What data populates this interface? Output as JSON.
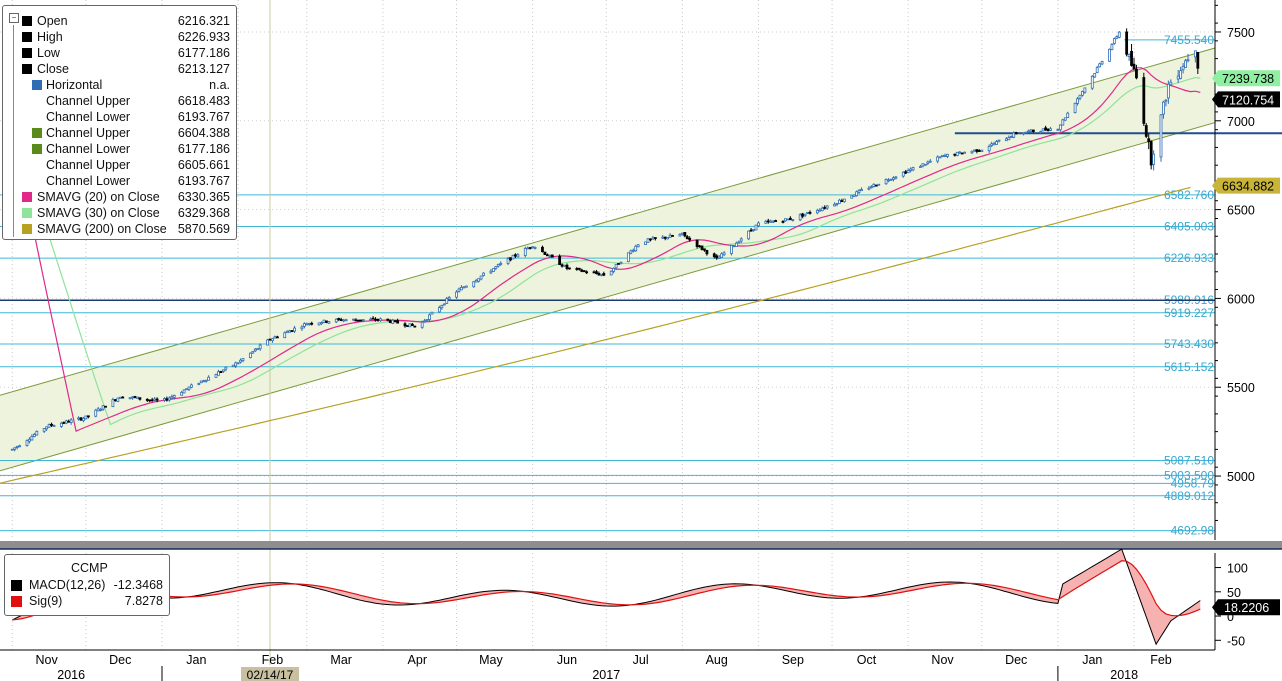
{
  "legend": {
    "collapse_icon": "minus-square-icon",
    "items": [
      {
        "label": "Open",
        "value": "6216.321",
        "color": "#000000",
        "indent": 1
      },
      {
        "label": "High",
        "value": "6226.933",
        "color": "#000000",
        "indent": 1
      },
      {
        "label": "Low",
        "value": "6177.186",
        "color": "#000000",
        "indent": 1
      },
      {
        "label": "Close",
        "value": "6213.127",
        "color": "#000000",
        "indent": 1
      },
      {
        "label": "Horizontal",
        "value": "n.a.",
        "color": "#2f6db5",
        "indent": 2
      },
      {
        "label": "Channel Upper",
        "value": "6618.483",
        "color": "#ffffff",
        "indent": 2
      },
      {
        "label": "Channel Lower",
        "value": "6193.767",
        "color": "#ffffff",
        "indent": 2
      },
      {
        "label": "Channel Upper",
        "value": "6604.388",
        "color": "#5a8a1a",
        "indent": 2
      },
      {
        "label": "Channel Lower",
        "value": "6177.186",
        "color": "#5a8a1a",
        "indent": 2
      },
      {
        "label": "Channel Upper",
        "value": "6605.661",
        "color": "#ffffff",
        "indent": 2
      },
      {
        "label": "Channel Lower",
        "value": "6193.767",
        "color": "#ffffff",
        "indent": 2
      },
      {
        "label": "SMAVG (20) on Close",
        "value": "6330.365",
        "color": "#e0288a",
        "indent": 1
      },
      {
        "label": "SMAVG (30) on Close",
        "value": "6329.368",
        "color": "#8fe39a",
        "indent": 1
      },
      {
        "label": "SMAVG (200) on Close",
        "value": "5870.569",
        "color": "#b8a020",
        "indent": 1
      }
    ]
  },
  "macd_legend": {
    "title": "CCMP",
    "items": [
      {
        "label": "MACD(12,26)",
        "value": "-12.3468",
        "color": "#000000"
      },
      {
        "label": "Sig(9)",
        "value": "7.8278",
        "color": "#e01010"
      }
    ]
  },
  "axis_tags": [
    {
      "text": "7239.738",
      "value": 7239.738,
      "bg": "#8ef0a0",
      "fg": "#000000"
    },
    {
      "text": "7120.754",
      "value": 7120.754,
      "bg": "#000000",
      "fg": "#ffffff"
    },
    {
      "text": "6634.882",
      "value": 6634.882,
      "bg": "#c9b43a",
      "fg": "#000000"
    },
    {
      "text": "18.2206",
      "value": 18.2206,
      "bg": "#000000",
      "fg": "#ffffff"
    }
  ],
  "colors": {
    "channel_fill": "#eef3dd",
    "channel_line": "#7a9a3a",
    "level_line": "#3fb8d8",
    "sma20": "#e0288a",
    "sma30": "#8fe39a",
    "sma200": "#b8a020",
    "macd_line": "#000000",
    "signal_line": "#e01010",
    "macd_fill": "#f4a3a3",
    "candle_up": "#2f6db5",
    "candle_down": "#000000"
  },
  "chart_data": [
    {
      "type": "candlestick",
      "ticker": "CCMP",
      "y_ticks": [
        5000,
        5500,
        6000,
        6500,
        7000,
        7500
      ],
      "ylim": [
        4640,
        7680
      ],
      "x_months": [
        "Nov",
        "Dec",
        "Jan",
        "Feb",
        "Mar",
        "Apr",
        "May",
        "Jun",
        "Jul",
        "Aug",
        "Sep",
        "Oct",
        "Nov",
        "Dec",
        "Jan",
        "Feb"
      ],
      "x_years": [
        "2016",
        "2017",
        "2018"
      ],
      "cursor_date": "02/14/17",
      "horizontal_levels": [
        {
          "value": 7455.54,
          "label": "7455.540"
        },
        {
          "value": 6582.76,
          "label": "6582.760"
        },
        {
          "value": 6405.003,
          "label": "6405.003"
        },
        {
          "value": 6226.933,
          "label": "6226.933"
        },
        {
          "value": 5989.916,
          "label": "5989.916"
        },
        {
          "value": 5919.227,
          "label": "5919.227"
        },
        {
          "value": 5743.43,
          "label": "5743.430"
        },
        {
          "value": 5615.152,
          "label": "5615.152"
        },
        {
          "value": 5087.51,
          "label": "5087.510"
        },
        {
          "value": 5003.5,
          "label": "5003.500"
        },
        {
          "value": 4958.79,
          "label": "4958.79"
        },
        {
          "value": 4889.012,
          "label": "4889.012"
        },
        {
          "value": 4692.98,
          "label": "4692.98"
        }
      ],
      "channel": {
        "upper_start": 5455,
        "upper_end": 7410,
        "lower_start": 5030,
        "lower_end": 6990
      },
      "close_path": [
        [
          "2016-11-01",
          5150
        ],
        [
          "2016-11-15",
          5280
        ],
        [
          "2016-12-01",
          5330
        ],
        [
          "2016-12-15",
          5450
        ],
        [
          "2017-01-01",
          5420
        ],
        [
          "2017-01-15",
          5520
        ],
        [
          "2017-02-01",
          5640
        ],
        [
          "2017-02-14",
          5770
        ],
        [
          "2017-03-01",
          5860
        ],
        [
          "2017-03-15",
          5880
        ],
        [
          "2017-04-01",
          5880
        ],
        [
          "2017-04-15",
          5840
        ],
        [
          "2017-05-01",
          6040
        ],
        [
          "2017-05-15",
          6160
        ],
        [
          "2017-06-01",
          6300
        ],
        [
          "2017-06-15",
          6170
        ],
        [
          "2017-07-01",
          6130
        ],
        [
          "2017-07-15",
          6320
        ],
        [
          "2017-08-01",
          6360
        ],
        [
          "2017-08-15",
          6220
        ],
        [
          "2017-09-01",
          6420
        ],
        [
          "2017-09-15",
          6450
        ],
        [
          "2017-10-01",
          6530
        ],
        [
          "2017-10-15",
          6620
        ],
        [
          "2017-11-01",
          6720
        ],
        [
          "2017-11-15",
          6800
        ],
        [
          "2017-12-01",
          6840
        ],
        [
          "2017-12-15",
          6930
        ],
        [
          "2018-01-01",
          6960
        ],
        [
          "2018-01-15",
          7250
        ],
        [
          "2018-01-26",
          7500
        ],
        [
          "2018-02-02",
          7240
        ],
        [
          "2018-02-08",
          6780
        ],
        [
          "2018-02-15",
          7200
        ],
        [
          "2018-02-26",
          7420
        ],
        [
          "2018-03-01",
          7120
        ]
      ],
      "macd_ticks": [
        100,
        50,
        0,
        -50
      ]
    }
  ]
}
